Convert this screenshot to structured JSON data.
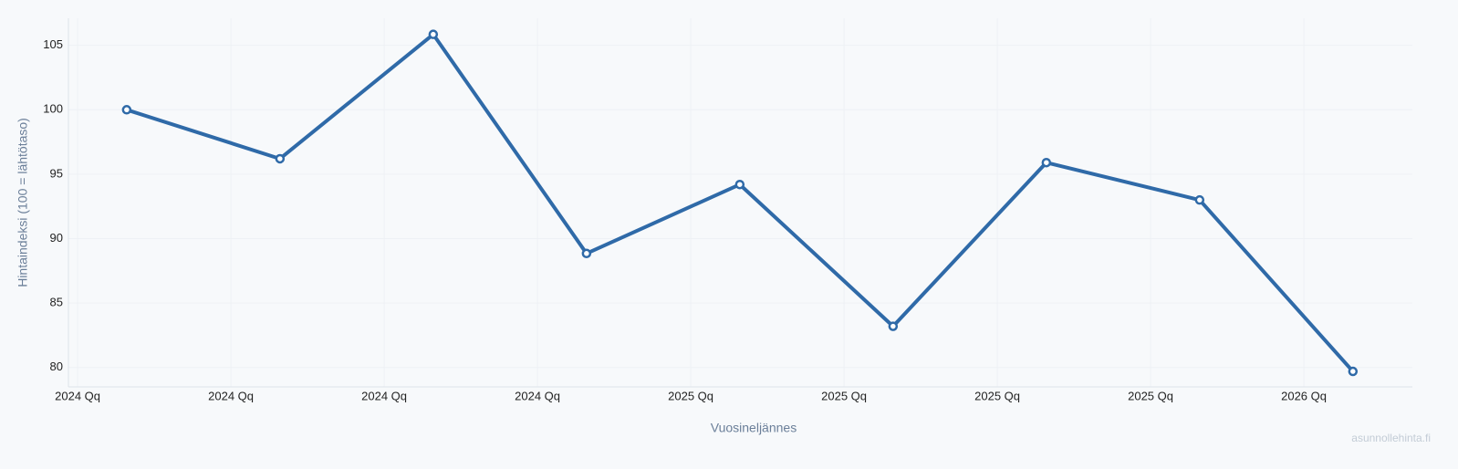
{
  "chart_data": {
    "type": "line",
    "x_label": "Vuosineljännes",
    "y_label": "Hintaindeksi (100 = lähtötaso)",
    "watermark": "asunnollehinta.fi",
    "x": [
      2024.08,
      2024.33,
      2024.58,
      2024.83,
      2025.08,
      2025.33,
      2025.58,
      2025.83,
      2026.08
    ],
    "series": [
      {
        "name": "Hintaindeksi",
        "color": "#2f6aa8",
        "values": [
          100,
          96.2,
          105.85,
          88.85,
          94.2,
          83.2,
          95.9,
          93.0,
          79.7
        ]
      }
    ],
    "xlim": [
      2023.985,
      2026.177
    ],
    "xticks": [
      {
        "value": 2024,
        "label": "2024 Qq"
      },
      {
        "value": 2024.25,
        "label": "2024 Qq"
      },
      {
        "value": 2024.5,
        "label": "2024 Qq"
      },
      {
        "value": 2024.75,
        "label": "2024 Qq"
      },
      {
        "value": 2025,
        "label": "2025 Qq"
      },
      {
        "value": 2025.25,
        "label": "2025 Qq"
      },
      {
        "value": 2025.5,
        "label": "2025 Qq"
      },
      {
        "value": 2025.75,
        "label": "2025 Qq"
      },
      {
        "value": 2026,
        "label": "2026 Qq"
      }
    ],
    "ylim": [
      78.5,
      107.1
    ],
    "yticks": [
      80,
      85,
      90,
      95,
      100,
      105
    ],
    "grid": true
  }
}
